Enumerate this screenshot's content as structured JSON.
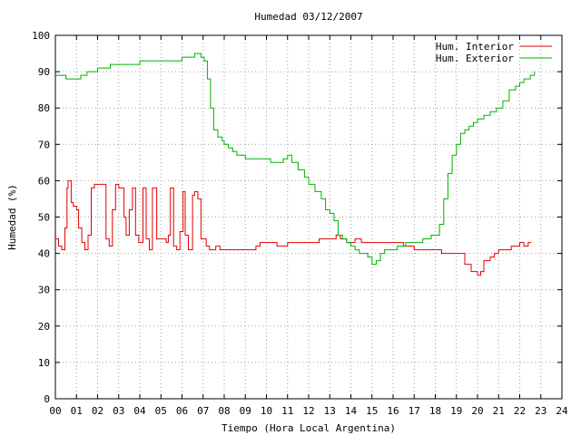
{
  "chart_data": {
    "type": "line",
    "title": "Humedad 03/12/2007",
    "xlabel": "Tiempo (Hora Local Argentina)",
    "ylabel": "Humedad (%)",
    "xlim": [
      0,
      24
    ],
    "ylim": [
      0,
      100
    ],
    "xticks": [
      "00",
      "01",
      "02",
      "03",
      "04",
      "05",
      "06",
      "07",
      "08",
      "09",
      "10",
      "11",
      "12",
      "13",
      "14",
      "15",
      "16",
      "17",
      "18",
      "19",
      "20",
      "21",
      "22",
      "23",
      "24"
    ],
    "yticks": [
      "0",
      "10",
      "20",
      "30",
      "40",
      "50",
      "60",
      "70",
      "80",
      "90",
      "100"
    ],
    "grid": true,
    "legend_position": "top-right",
    "colors": {
      "interior": "#e00000",
      "exterior": "#00b000",
      "grid": "#a0a0a0",
      "axis": "#000000"
    },
    "series": [
      {
        "name": "Hum. Interior",
        "color": "#e00000",
        "x": [
          0.0,
          0.15,
          0.3,
          0.45,
          0.55,
          0.6,
          0.75,
          0.85,
          1.0,
          1.1,
          1.25,
          1.4,
          1.55,
          1.7,
          1.85,
          2.2,
          2.4,
          2.55,
          2.7,
          2.85,
          3.0,
          3.25,
          3.35,
          3.5,
          3.65,
          3.8,
          3.95,
          4.15,
          4.3,
          4.45,
          4.6,
          4.8,
          5.05,
          5.25,
          5.35,
          5.45,
          5.6,
          5.75,
          5.9,
          6.05,
          6.15,
          6.3,
          6.5,
          6.6,
          6.75,
          6.9,
          7.0,
          7.15,
          7.3,
          7.45,
          7.6,
          7.8,
          8.0,
          8.5,
          9.0,
          9.5,
          9.7,
          10.0,
          10.5,
          11.0,
          11.5,
          12.0,
          12.5,
          13.0,
          13.3,
          13.5,
          13.8,
          14.0,
          14.2,
          14.5,
          15.0,
          15.5,
          16.0,
          16.5,
          17.0,
          17.5,
          18.0,
          18.3,
          18.6,
          19.0,
          19.4,
          19.7,
          19.85,
          20.0,
          20.15,
          20.3,
          20.45,
          20.6,
          20.8,
          21.0,
          21.2,
          21.4,
          21.6,
          21.8,
          22.0,
          22.2,
          22.4,
          22.55
        ],
        "y": [
          44,
          42,
          41,
          47,
          58,
          60,
          54,
          53,
          52,
          47,
          43,
          41,
          45,
          58,
          59,
          59,
          44,
          42,
          52,
          59,
          58,
          50,
          45,
          52,
          58,
          45,
          43,
          58,
          44,
          41,
          58,
          44,
          44,
          43,
          45,
          58,
          42,
          41,
          46,
          57,
          45,
          41,
          56,
          57,
          55,
          44,
          44,
          42,
          41,
          41,
          42,
          41,
          41,
          41,
          41,
          42,
          43,
          43,
          42,
          43,
          43,
          43,
          44,
          44,
          45,
          44,
          43,
          43,
          44,
          43,
          43,
          43,
          43,
          42,
          41,
          41,
          41,
          40,
          40,
          40,
          37,
          35,
          35,
          34,
          35,
          38,
          38,
          39,
          40,
          41,
          41,
          41,
          42,
          42,
          43,
          42,
          43,
          43
        ]
      },
      {
        "name": "Hum. Exterior",
        "color": "#00b000",
        "x": [
          0.0,
          0.3,
          0.5,
          1.0,
          1.2,
          1.5,
          2.0,
          2.3,
          2.6,
          3.0,
          3.5,
          4.0,
          4.5,
          5.0,
          5.5,
          6.0,
          6.3,
          6.6,
          6.9,
          7.05,
          7.2,
          7.35,
          7.5,
          7.7,
          7.9,
          8.0,
          8.2,
          8.4,
          8.6,
          8.8,
          9.0,
          9.2,
          9.5,
          9.8,
          10.0,
          10.2,
          10.5,
          10.8,
          11.0,
          11.2,
          11.5,
          11.8,
          12.0,
          12.3,
          12.6,
          12.8,
          13.0,
          13.2,
          13.4,
          13.6,
          13.8,
          14.0,
          14.2,
          14.4,
          14.6,
          14.8,
          15.0,
          15.2,
          15.4,
          15.6,
          15.8,
          16.0,
          16.2,
          16.4,
          16.6,
          16.8,
          17.0,
          17.2,
          17.4,
          17.6,
          17.8,
          18.0,
          18.2,
          18.4,
          18.6,
          18.8,
          19.0,
          19.2,
          19.4,
          19.6,
          19.8,
          20.0,
          20.3,
          20.6,
          20.9,
          21.2,
          21.5,
          21.8,
          22.0,
          22.2,
          22.5,
          22.7
        ],
        "y": [
          89,
          89,
          88,
          88,
          89,
          90,
          91,
          91,
          92,
          92,
          92,
          93,
          93,
          93,
          93,
          94,
          94,
          95,
          94,
          93,
          88,
          80,
          74,
          72,
          71,
          70,
          69,
          68,
          67,
          67,
          66,
          66,
          66,
          66,
          66,
          65,
          65,
          66,
          67,
          65,
          63,
          61,
          59,
          57,
          55,
          52,
          51,
          49,
          45,
          44,
          43,
          42,
          41,
          40,
          40,
          39,
          37,
          38,
          40,
          41,
          41,
          41,
          42,
          42,
          43,
          43,
          43,
          43,
          44,
          44,
          45,
          45,
          48,
          55,
          62,
          67,
          70,
          73,
          74,
          75,
          76,
          77,
          78,
          79,
          80,
          82,
          85,
          86,
          87,
          88,
          89,
          90
        ]
      }
    ]
  }
}
